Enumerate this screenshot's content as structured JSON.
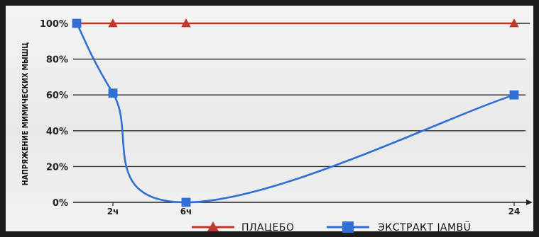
{
  "chart_data": {
    "type": "line",
    "ylabel": "НАПРЯЖЕНИЕ МИМИЧЕСКИХ МЫШЦ",
    "xlabel": "",
    "x": [
      0,
      2,
      6,
      24
    ],
    "x_tick_labels": [
      {
        "x": 2,
        "label": "2ч"
      },
      {
        "x": 6,
        "label": "6ч"
      },
      {
        "x": 24,
        "label": "24"
      }
    ],
    "ylim": [
      0,
      100
    ],
    "y_ticks": [
      0,
      20,
      40,
      60,
      80,
      100
    ],
    "y_tick_labels": [
      "0%",
      "20%",
      "40%",
      "60%",
      "80%",
      "100%"
    ],
    "grid": "horizontal",
    "legend_position": "bottom",
    "series": [
      {
        "name": "ПЛАЦЕБО",
        "values": [
          100,
          100,
          100,
          100
        ],
        "color": "#c0392b",
        "marker": "triangle",
        "smooth": false
      },
      {
        "name": "ЭКСТРАКТ JAMBÜ",
        "values": [
          100,
          61,
          0,
          60
        ],
        "color": "#2f6fd6",
        "marker": "square",
        "smooth": true
      }
    ]
  }
}
